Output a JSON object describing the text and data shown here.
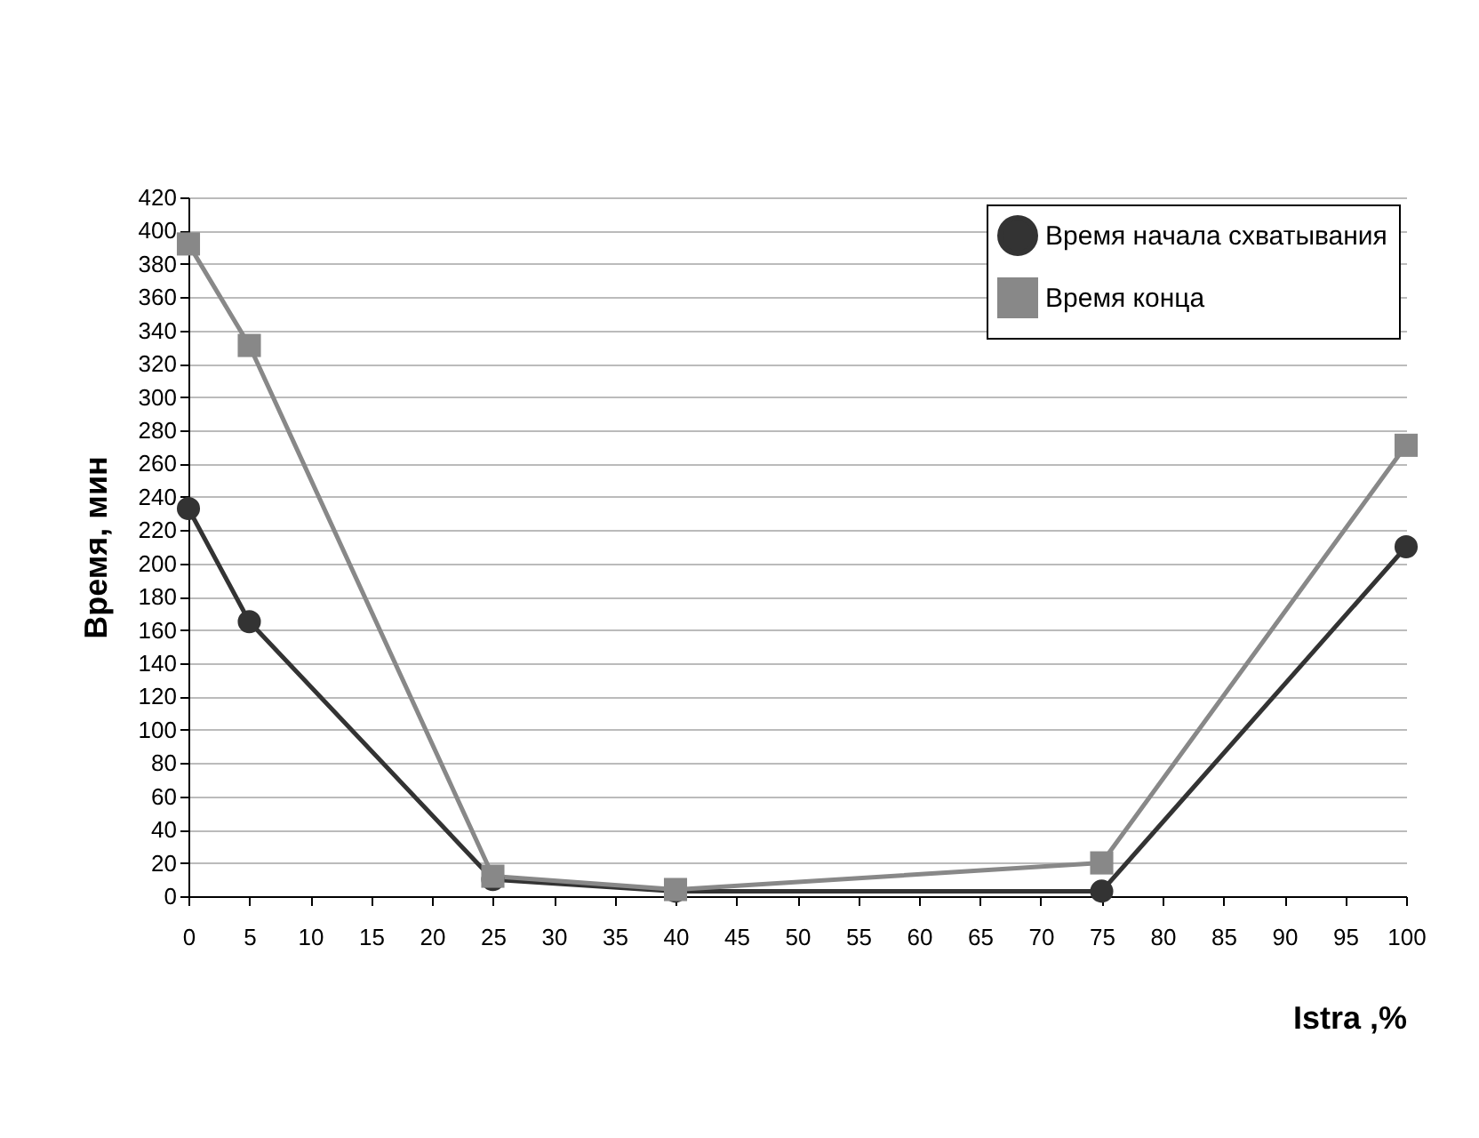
{
  "chart_data": {
    "type": "line",
    "xlabel": "Istra ,%",
    "ylabel": "Время, мин",
    "x": [
      0,
      5,
      25,
      40,
      75,
      100
    ],
    "xlim": [
      0,
      100
    ],
    "xticks": [
      0,
      5,
      10,
      15,
      20,
      25,
      30,
      35,
      40,
      45,
      50,
      55,
      60,
      65,
      70,
      75,
      80,
      85,
      90,
      95,
      100
    ],
    "ylim": [
      0,
      420
    ],
    "yticks": [
      0,
      20,
      40,
      60,
      80,
      100,
      120,
      140,
      160,
      180,
      200,
      220,
      240,
      260,
      280,
      300,
      320,
      340,
      360,
      380,
      400,
      420
    ],
    "grid": "y",
    "legend": "top right",
    "line_style": "solid",
    "series": [
      {
        "name": "Время начала схватывания",
        "color": "#333333",
        "marker": "circle",
        "values": [
          233,
          165,
          10,
          3,
          3,
          210
        ]
      },
      {
        "name": "Время конца",
        "color": "#888888",
        "marker": "square",
        "values": [
          392,
          331,
          12,
          4,
          20,
          271
        ]
      }
    ]
  }
}
